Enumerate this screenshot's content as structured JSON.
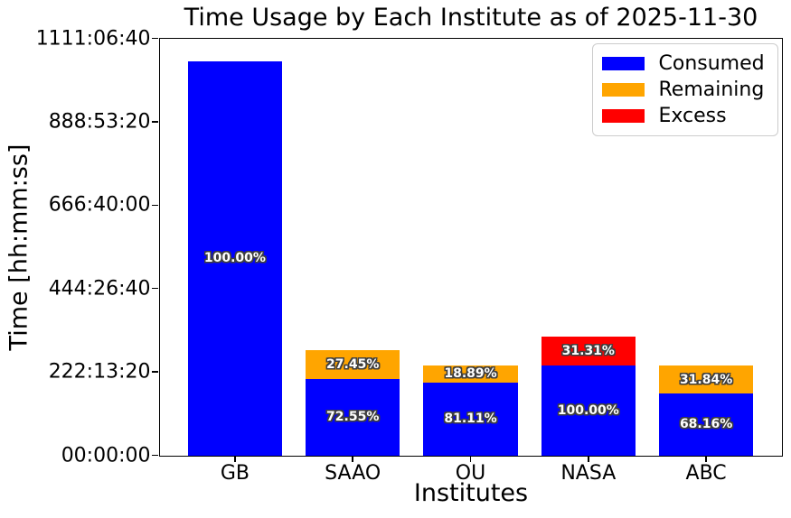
{
  "chart_data": {
    "type": "bar",
    "stacked": true,
    "title": "Time Usage by Each Institute as of 2025-11-30",
    "xlabel": "Institutes",
    "ylabel": "Time [hh:mm:ss]",
    "categories": [
      "GB",
      "SAAO",
      "OU",
      "NASA",
      "ABC"
    ],
    "y_axis": {
      "unit": "seconds",
      "ylim": [
        0,
        4000000
      ],
      "tick_values": [
        0,
        800000,
        1600000,
        2400000,
        3200000,
        4000000
      ],
      "tick_labels": [
        "00:00:00",
        "222:13:20",
        "444:26:40",
        "666:40:00",
        "888:53:20",
        "1111:06:40"
      ]
    },
    "series": [
      {
        "name": "Consumed",
        "color": "#0000ff",
        "values_seconds": [
          3780000,
          731304,
          700790,
          864000,
          588902
        ],
        "labels": [
          "100.00%",
          "72.55%",
          "81.11%",
          "100.00%",
          "68.16%"
        ]
      },
      {
        "name": "Remaining",
        "color": "#ffa500",
        "values_seconds": [
          0,
          276696,
          163210,
          0,
          275098
        ],
        "labels": [
          "",
          "27.45%",
          "18.89%",
          "",
          "31.84%"
        ]
      },
      {
        "name": "Excess",
        "color": "#ff0000",
        "values_seconds": [
          0,
          0,
          0,
          270518,
          0
        ],
        "labels": [
          "",
          "",
          "",
          "31.31%",
          ""
        ]
      }
    ],
    "legend": {
      "position": "upper right",
      "entries": [
        {
          "label": "Consumed",
          "color": "#0000ff"
        },
        {
          "label": "Remaining",
          "color": "#ffa500"
        },
        {
          "label": "Excess",
          "color": "#ff0000"
        }
      ]
    }
  }
}
